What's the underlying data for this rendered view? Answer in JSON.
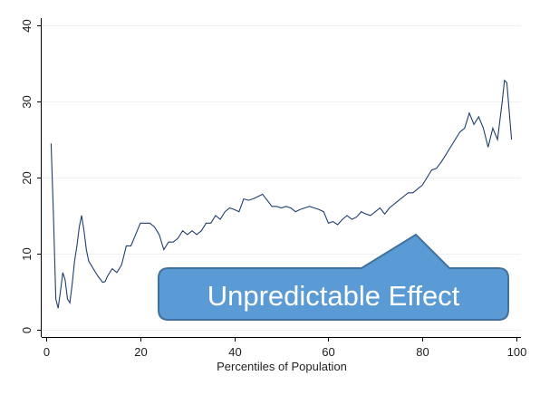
{
  "chart_data": {
    "type": "line",
    "title": "",
    "xlabel": "Percentiles of Population",
    "ylabel": "",
    "xlim": [
      -1,
      101
    ],
    "ylim": [
      -1,
      41
    ],
    "xticks": [
      0,
      20,
      40,
      60,
      80,
      100
    ],
    "yticks": [
      0,
      10,
      20,
      30,
      40
    ],
    "grid": "horizontal",
    "line_color": "#1f3f6e",
    "series": [
      {
        "x": [
          1,
          1.5,
          2,
          2.5,
          3,
          3.5,
          4,
          4.5,
          5,
          5.5,
          6,
          6.5,
          7,
          7.5,
          8,
          8.5,
          9,
          9.5,
          10,
          11,
          12,
          12.5,
          13,
          14,
          15,
          16,
          17,
          18,
          19,
          20,
          21,
          22,
          23,
          24,
          25,
          26,
          27,
          28,
          29,
          30,
          31,
          32,
          33,
          34,
          35,
          36,
          37,
          38,
          39,
          40,
          41,
          42,
          43,
          44,
          45,
          46,
          47,
          48,
          49,
          50,
          51,
          52,
          53,
          54,
          55,
          56,
          57,
          58,
          59,
          60,
          61,
          62,
          63,
          64,
          65,
          66,
          67,
          68,
          69,
          70,
          71,
          72,
          73,
          74,
          75,
          76,
          77,
          78,
          79,
          80,
          81,
          82,
          83,
          84,
          85,
          86,
          87,
          88,
          89,
          90,
          91,
          92,
          93,
          94,
          95,
          96,
          97,
          97.5,
          98,
          99
        ],
        "values": [
          24.5,
          15,
          4,
          2.8,
          5,
          7.5,
          6.5,
          4,
          3.5,
          6,
          9,
          11,
          13.5,
          15,
          13,
          10.5,
          9,
          8.5,
          8,
          7,
          6.2,
          6.3,
          7,
          8,
          7.5,
          8.5,
          11,
          11,
          12.5,
          14,
          14,
          14,
          13.5,
          12.5,
          10.5,
          11.5,
          11.5,
          12,
          13,
          12.5,
          13,
          12.5,
          13,
          14,
          14,
          15,
          14.5,
          15.5,
          16,
          15.8,
          15.5,
          17.2,
          17,
          17.2,
          17.5,
          17.8,
          17,
          16.2,
          16.2,
          16,
          16.2,
          16,
          15.5,
          15.8,
          16,
          16.2,
          16,
          15.8,
          15.5,
          14,
          14.2,
          13.8,
          14.5,
          15,
          14.5,
          14.8,
          15.5,
          15.2,
          15,
          15.5,
          16,
          15.2,
          16,
          16.5,
          17,
          17.5,
          18,
          18,
          18.5,
          19,
          20,
          21,
          21.2,
          22,
          23,
          24,
          25,
          26,
          26.5,
          28.5,
          27,
          28,
          26.5,
          24,
          26.5,
          25,
          30,
          32.8,
          32.5,
          25
        ]
      }
    ]
  },
  "callout": {
    "text": "Unpredictable Effect",
    "fill": "#5b9bd5",
    "stroke": "#41719c"
  }
}
